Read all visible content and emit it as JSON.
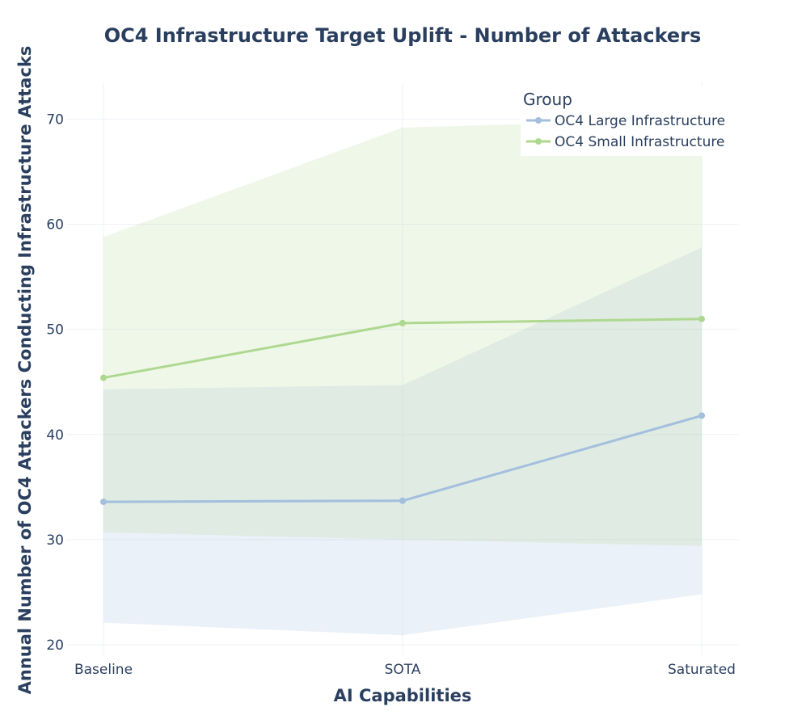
{
  "chart_data": {
    "type": "line",
    "title": "OC4 Infrastructure Target Uplift - Number of Attackers",
    "xlabel": "AI Capabilities",
    "ylabel": "Annual Number of OC4 Attackers Conducting Infrastructure Attacks",
    "categories": [
      "Baseline",
      "SOTA",
      "Saturated"
    ],
    "ylim": [
      19,
      73.5
    ],
    "yticks": [
      20,
      30,
      40,
      50,
      60,
      70
    ],
    "grid": true,
    "legend": {
      "title": "Group",
      "placement": "top-right"
    },
    "series": [
      {
        "name": "OC4 Large Infrastructure",
        "color": "#a3bfdd",
        "values": [
          33.6,
          33.7,
          41.8
        ],
        "lower": [
          22.1,
          20.9,
          24.8
        ],
        "upper": [
          44.3,
          44.7,
          57.8
        ]
      },
      {
        "name": "OC4 Small Infrastructure",
        "color": "#aed88f",
        "values": [
          45.4,
          50.6,
          51.0
        ],
        "lower": [
          30.7,
          30.0,
          29.4
        ],
        "upper": [
          58.8,
          69.2,
          70.0
        ]
      }
    ]
  }
}
